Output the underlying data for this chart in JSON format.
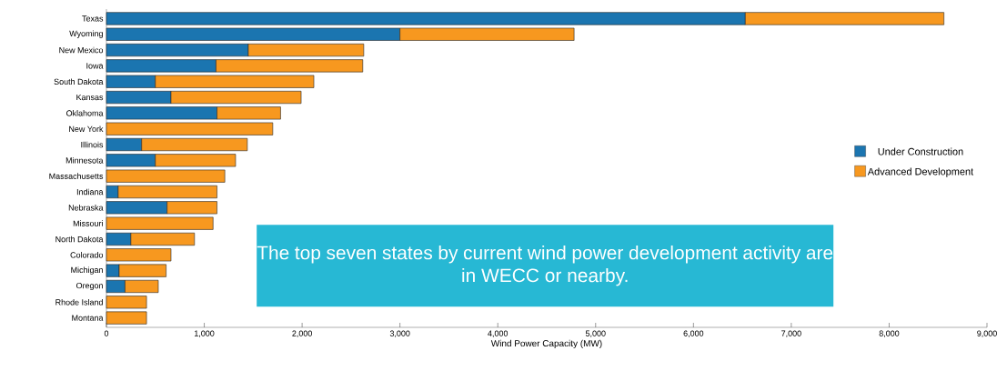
{
  "chart_data": {
    "type": "bar",
    "orientation": "horizontal",
    "stacked": true,
    "categories": [
      "Texas",
      "Wyoming",
      "New Mexico",
      "Iowa",
      "South Dakota",
      "Kansas",
      "Oklahoma",
      "New York",
      "Illinois",
      "Minnesota",
      "Massachusetts",
      "Indiana",
      "Nebraska",
      "Missouri",
      "North Dakota",
      "Colorado",
      "Michigan",
      "Oregon",
      "Rhode Island",
      "Montana"
    ],
    "series": [
      {
        "name": "Under Construction",
        "color": "#1b75b0",
        "values": [
          6530,
          3000,
          1450,
          1120,
          500,
          660,
          1130,
          null,
          360,
          500,
          null,
          120,
          620,
          null,
          250,
          null,
          130,
          190,
          null,
          null
        ]
      },
      {
        "name": "Advanced Development",
        "color": "#f7981f",
        "values": [
          2030,
          1780,
          1180,
          1500,
          1620,
          1330,
          650,
          1700,
          1080,
          820,
          1210,
          1010,
          510,
          1090,
          650,
          660,
          480,
          340,
          410,
          410
        ]
      }
    ],
    "xlabel": "Wind Power Capacity (MW)",
    "xlim": [
      0,
      9000
    ],
    "xticks": [
      0,
      {
        "value": 1000,
        "label": "1,000"
      },
      {
        "value": 2000,
        "label": "2,000"
      },
      {
        "value": 3000,
        "label": "3,000"
      },
      {
        "value": 4000,
        "label": "4,000"
      },
      {
        "value": 5000,
        "label": "5,000"
      },
      {
        "value": 6000,
        "label": "6,000"
      },
      {
        "value": 7000,
        "label": "7,000"
      },
      {
        "value": 8000,
        "label": "8,000"
      },
      {
        "value": 9000,
        "label": "9,000"
      }
    ],
    "legend": "right",
    "annotations": [
      "The top seven states by current wind power development activity are in WECC or nearby."
    ]
  }
}
